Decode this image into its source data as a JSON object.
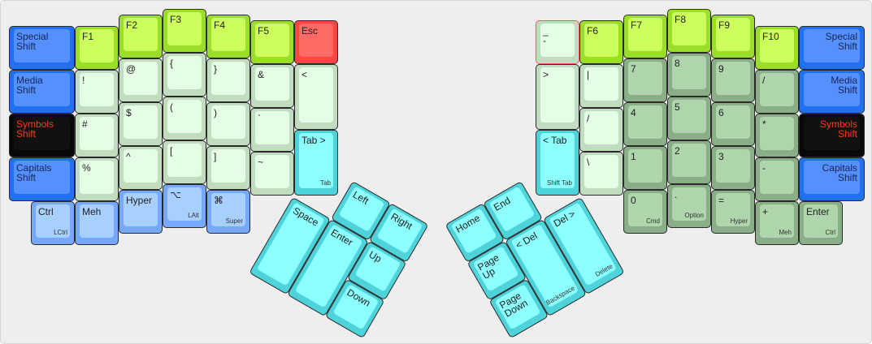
{
  "colors": {
    "green": "#ccff5c",
    "light": "#e5fce5",
    "blue": "#5590ff",
    "black": "#111111",
    "red": "#ff6a66",
    "lblue": "#a8d0ff",
    "cyan": "#8cffff",
    "dgreen": "#aed5ac",
    "symbols_text": "#ff3a1a"
  },
  "left_keys": [
    {
      "label": "Special\nShift",
      "color": "blue"
    },
    {
      "label": "F1",
      "color": "green"
    },
    {
      "label": "F2",
      "color": "green"
    },
    {
      "label": "F3",
      "color": "green"
    },
    {
      "label": "F4",
      "color": "green"
    },
    {
      "label": "F5",
      "color": "green"
    },
    {
      "label": "Esc",
      "color": "red"
    },
    {
      "label": "Media\nShift",
      "color": "blue"
    },
    {
      "label": "!",
      "color": "light"
    },
    {
      "label": "@",
      "color": "light"
    },
    {
      "label": "{",
      "color": "light"
    },
    {
      "label": "}",
      "color": "light"
    },
    {
      "label": "&",
      "color": "light"
    },
    {
      "label": "<",
      "color": "light"
    },
    {
      "label": "Symbols\nShift",
      "color": "black"
    },
    {
      "label": "#",
      "color": "light"
    },
    {
      "label": "$",
      "color": "light"
    },
    {
      "label": "(",
      "color": "light"
    },
    {
      "label": ")",
      "color": "light"
    },
    {
      "label": "`",
      "color": "light"
    },
    {
      "label": "Tab >",
      "sub": "Tab",
      "color": "cyan"
    },
    {
      "label": "Capitals\nShift",
      "color": "blue"
    },
    {
      "label": "%",
      "color": "light"
    },
    {
      "label": "^",
      "color": "light"
    },
    {
      "label": "[",
      "color": "light"
    },
    {
      "label": "]",
      "color": "light"
    },
    {
      "label": "~",
      "color": "light"
    },
    {
      "label": "Ctrl",
      "sub": "LCtrl",
      "color": "lblue"
    },
    {
      "label": "Meh",
      "color": "lblue"
    },
    {
      "label": "Hyper",
      "color": "lblue"
    },
    {
      "label": "⌥",
      "sub": "LAlt",
      "color": "lblue"
    },
    {
      "label": "⌘",
      "sub": "Super",
      "color": "lblue"
    }
  ],
  "right_keys": [
    {
      "label": "_\n-",
      "color": "light"
    },
    {
      "label": "F6",
      "color": "green"
    },
    {
      "label": "F7",
      "color": "green"
    },
    {
      "label": "F8",
      "color": "green"
    },
    {
      "label": "F9",
      "color": "green"
    },
    {
      "label": "F10",
      "color": "green"
    },
    {
      "label": "Special\nShift",
      "color": "blue"
    },
    {
      "label": ">",
      "color": "light"
    },
    {
      "label": "|",
      "color": "light"
    },
    {
      "label": "7",
      "color": "dgreen"
    },
    {
      "label": "8",
      "color": "dgreen"
    },
    {
      "label": "9",
      "color": "dgreen"
    },
    {
      "label": "/",
      "color": "dgreen"
    },
    {
      "label": "Media\nShift",
      "color": "blue"
    },
    {
      "label": "< Tab",
      "sub": "Shift Tab",
      "color": "cyan"
    },
    {
      "label": "/",
      "color": "light"
    },
    {
      "label": "4",
      "color": "dgreen"
    },
    {
      "label": "5",
      "color": "dgreen"
    },
    {
      "label": "6",
      "color": "dgreen"
    },
    {
      "label": "*",
      "color": "dgreen"
    },
    {
      "label": "Symbols\nShift",
      "color": "black"
    },
    {
      "label": "\\",
      "color": "light"
    },
    {
      "label": "1",
      "color": "dgreen"
    },
    {
      "label": "2",
      "color": "dgreen"
    },
    {
      "label": "3",
      "color": "dgreen"
    },
    {
      "label": "-",
      "color": "dgreen"
    },
    {
      "label": "Capitals\nShift",
      "color": "blue"
    },
    {
      "label": "0",
      "sub": "Cmd",
      "color": "dgreen"
    },
    {
      "label": ".",
      "sub": "Option",
      "color": "dgreen"
    },
    {
      "label": "=",
      "sub": "Hyper",
      "color": "dgreen"
    },
    {
      "label": "+",
      "sub": "Meh",
      "color": "dgreen"
    },
    {
      "label": "Enter",
      "sub": "Ctrl",
      "color": "dgreen"
    }
  ],
  "left_thumb": [
    {
      "label": "Left",
      "color": "cyan"
    },
    {
      "label": "Right",
      "color": "cyan"
    },
    {
      "label": "Space",
      "color": "cyan"
    },
    {
      "label": "Enter",
      "color": "cyan"
    },
    {
      "label": "Up",
      "color": "cyan"
    },
    {
      "label": "Down",
      "color": "cyan"
    }
  ],
  "right_thumb": [
    {
      "label": "Home",
      "color": "cyan"
    },
    {
      "label": "End",
      "color": "cyan"
    },
    {
      "label": "Page\nUp",
      "color": "cyan"
    },
    {
      "label": "< Del",
      "sub": "Backspace",
      "color": "cyan"
    },
    {
      "label": "Del >",
      "sub": "Delete",
      "color": "cyan"
    },
    {
      "label": "Page\nDown",
      "color": "cyan"
    }
  ]
}
